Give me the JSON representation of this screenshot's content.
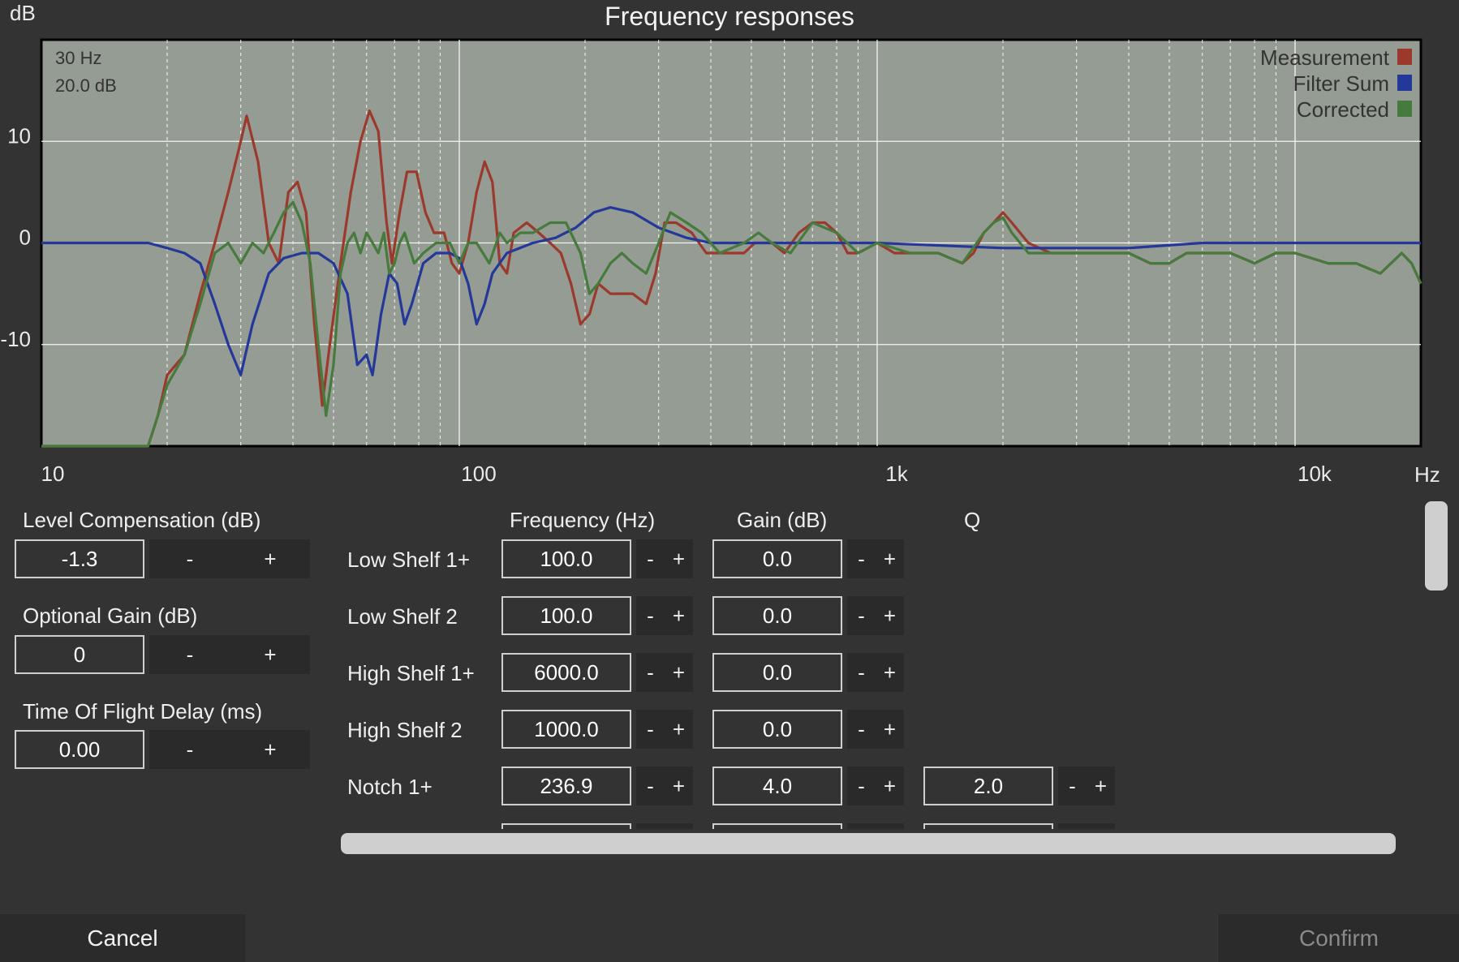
{
  "dialog": {
    "title": "Frequency responses"
  },
  "chart_data": {
    "type": "line",
    "title": "Frequency responses",
    "xlabel": "Hz",
    "ylabel": "dB",
    "x_scale": "log",
    "xlim": [
      10,
      20000
    ],
    "ylim": [
      -20,
      20
    ],
    "x_tick_labels": [
      "10",
      "100",
      "1k",
      "10k"
    ],
    "y_tick_labels": [
      "10",
      "0",
      "-10"
    ],
    "y_tick_values": [
      10,
      0,
      -10
    ],
    "x_tick_values": [
      10,
      100,
      1000,
      10000
    ],
    "grid": true,
    "legend_position": "top-right",
    "cursor_readout": {
      "freq": "30 Hz",
      "gain": "20.0 dB"
    },
    "series": [
      {
        "name": "Measurement",
        "color": "#9b3a2c",
        "points": [
          [
            10,
            -20
          ],
          [
            18,
            -20
          ],
          [
            19,
            -17
          ],
          [
            20,
            -13
          ],
          [
            22,
            -11
          ],
          [
            24,
            -5
          ],
          [
            26,
            0
          ],
          [
            28,
            5
          ],
          [
            30,
            10
          ],
          [
            31,
            12.5
          ],
          [
            33,
            8
          ],
          [
            35,
            0
          ],
          [
            37,
            -2
          ],
          [
            39,
            5
          ],
          [
            41,
            6
          ],
          [
            43,
            3
          ],
          [
            45,
            -8
          ],
          [
            47,
            -16
          ],
          [
            49,
            -10
          ],
          [
            52,
            -2
          ],
          [
            55,
            5
          ],
          [
            58,
            10
          ],
          [
            61,
            13
          ],
          [
            64,
            11
          ],
          [
            67,
            2
          ],
          [
            69,
            -2
          ],
          [
            72,
            3
          ],
          [
            75,
            7
          ],
          [
            79,
            7
          ],
          [
            83,
            3
          ],
          [
            87,
            1
          ],
          [
            92,
            1
          ],
          [
            96,
            -2
          ],
          [
            100,
            -3
          ],
          [
            105,
            0
          ],
          [
            110,
            5
          ],
          [
            115,
            8
          ],
          [
            120,
            6
          ],
          [
            125,
            -2
          ],
          [
            130,
            -3
          ],
          [
            135,
            1
          ],
          [
            145,
            2
          ],
          [
            155,
            1
          ],
          [
            165,
            0
          ],
          [
            175,
            -1
          ],
          [
            185,
            -4
          ],
          [
            195,
            -8
          ],
          [
            205,
            -7
          ],
          [
            215,
            -4
          ],
          [
            230,
            -5
          ],
          [
            245,
            -5
          ],
          [
            260,
            -5
          ],
          [
            280,
            -6
          ],
          [
            295,
            -3
          ],
          [
            310,
            2
          ],
          [
            330,
            2
          ],
          [
            360,
            1
          ],
          [
            390,
            -1
          ],
          [
            420,
            -1
          ],
          [
            450,
            -1
          ],
          [
            480,
            -1
          ],
          [
            510,
            0
          ],
          [
            560,
            0
          ],
          [
            600,
            -1
          ],
          [
            650,
            1
          ],
          [
            700,
            2
          ],
          [
            750,
            2
          ],
          [
            800,
            1
          ],
          [
            850,
            -1
          ],
          [
            900,
            -1
          ],
          [
            1000,
            0
          ],
          [
            1100,
            -1
          ],
          [
            1200,
            -1
          ],
          [
            1400,
            -1
          ],
          [
            1600,
            -2
          ],
          [
            1700,
            -1
          ],
          [
            1800,
            1
          ],
          [
            1900,
            2
          ],
          [
            2000,
            3
          ],
          [
            2100,
            2
          ],
          [
            2300,
            0
          ],
          [
            2600,
            -1
          ],
          [
            3000,
            -1
          ],
          [
            3500,
            -1
          ],
          [
            4000,
            -1
          ],
          [
            4500,
            -2
          ],
          [
            5000,
            -2
          ],
          [
            5500,
            -1
          ],
          [
            6000,
            -1
          ],
          [
            7000,
            -1
          ],
          [
            8000,
            -2
          ],
          [
            9000,
            -1
          ],
          [
            10000,
            -1
          ],
          [
            12000,
            -2
          ],
          [
            14000,
            -2
          ],
          [
            16000,
            -3
          ],
          [
            18000,
            -1
          ],
          [
            19000,
            -2
          ],
          [
            20000,
            -4
          ]
        ]
      },
      {
        "name": "Filter Sum",
        "color": "#24389a",
        "points": [
          [
            10,
            0
          ],
          [
            18,
            0
          ],
          [
            20,
            -0.5
          ],
          [
            22,
            -1
          ],
          [
            24,
            -2
          ],
          [
            26,
            -6
          ],
          [
            28,
            -10
          ],
          [
            30,
            -13
          ],
          [
            32,
            -8
          ],
          [
            35,
            -3
          ],
          [
            38,
            -1.5
          ],
          [
            42,
            -1
          ],
          [
            46,
            -1
          ],
          [
            50,
            -2
          ],
          [
            54,
            -5
          ],
          [
            57,
            -12
          ],
          [
            60,
            -11
          ],
          [
            62,
            -13
          ],
          [
            65,
            -7
          ],
          [
            68,
            -3
          ],
          [
            71,
            -4
          ],
          [
            74,
            -8
          ],
          [
            77,
            -6
          ],
          [
            82,
            -2
          ],
          [
            88,
            -1
          ],
          [
            95,
            -1
          ],
          [
            100,
            -1.5
          ],
          [
            105,
            -4
          ],
          [
            110,
            -8
          ],
          [
            115,
            -6
          ],
          [
            120,
            -3
          ],
          [
            130,
            -1
          ],
          [
            150,
            0
          ],
          [
            170,
            0.5
          ],
          [
            190,
            1.5
          ],
          [
            210,
            3
          ],
          [
            230,
            3.5
          ],
          [
            260,
            3
          ],
          [
            300,
            1.5
          ],
          [
            350,
            0.5
          ],
          [
            400,
            0
          ],
          [
            600,
            0
          ],
          [
            1000,
            0
          ],
          [
            2000,
            -0.5
          ],
          [
            4000,
            -0.5
          ],
          [
            6000,
            0
          ],
          [
            10000,
            0
          ],
          [
            20000,
            0
          ]
        ]
      },
      {
        "name": "Corrected",
        "color": "#477a3d",
        "points": [
          [
            10,
            -20
          ],
          [
            18,
            -20
          ],
          [
            19,
            -17
          ],
          [
            20,
            -14
          ],
          [
            22,
            -11
          ],
          [
            24,
            -6
          ],
          [
            26,
            -1
          ],
          [
            28,
            0
          ],
          [
            30,
            -2
          ],
          [
            32,
            0
          ],
          [
            34,
            -1
          ],
          [
            36,
            1
          ],
          [
            38,
            3
          ],
          [
            40,
            4
          ],
          [
            42,
            2
          ],
          [
            44,
            -2
          ],
          [
            46,
            -10
          ],
          [
            48,
            -17
          ],
          [
            50,
            -12
          ],
          [
            52,
            -3
          ],
          [
            54,
            0
          ],
          [
            56,
            1
          ],
          [
            58,
            -1
          ],
          [
            60,
            1
          ],
          [
            62,
            0
          ],
          [
            64,
            -1
          ],
          [
            66,
            1
          ],
          [
            68,
            -3
          ],
          [
            70,
            -2
          ],
          [
            72,
            0
          ],
          [
            74,
            1
          ],
          [
            78,
            -2
          ],
          [
            82,
            -1
          ],
          [
            88,
            0
          ],
          [
            95,
            0
          ],
          [
            100,
            -2
          ],
          [
            105,
            0
          ],
          [
            110,
            0
          ],
          [
            118,
            -2
          ],
          [
            125,
            1
          ],
          [
            130,
            0
          ],
          [
            140,
            1
          ],
          [
            150,
            1
          ],
          [
            165,
            2
          ],
          [
            180,
            2
          ],
          [
            195,
            -1
          ],
          [
            205,
            -5
          ],
          [
            215,
            -4
          ],
          [
            230,
            -2
          ],
          [
            245,
            -1
          ],
          [
            260,
            -2
          ],
          [
            280,
            -3
          ],
          [
            300,
            0
          ],
          [
            320,
            3
          ],
          [
            350,
            2
          ],
          [
            380,
            1
          ],
          [
            420,
            -1
          ],
          [
            480,
            0
          ],
          [
            520,
            1
          ],
          [
            560,
            0
          ],
          [
            620,
            -1
          ],
          [
            700,
            2
          ],
          [
            800,
            1
          ],
          [
            900,
            -1
          ],
          [
            1000,
            0
          ],
          [
            1200,
            -1
          ],
          [
            1400,
            -1
          ],
          [
            1600,
            -2
          ],
          [
            1800,
            1
          ],
          [
            1900,
            2
          ],
          [
            2000,
            2.5
          ],
          [
            2100,
            1
          ],
          [
            2300,
            -1
          ],
          [
            2600,
            -1
          ],
          [
            3000,
            -1
          ],
          [
            3500,
            -1
          ],
          [
            4000,
            -1
          ],
          [
            4500,
            -2
          ],
          [
            5000,
            -2
          ],
          [
            5500,
            -1
          ],
          [
            6000,
            -1
          ],
          [
            7000,
            -1
          ],
          [
            8000,
            -2
          ],
          [
            9000,
            -1
          ],
          [
            10000,
            -1
          ],
          [
            12000,
            -2
          ],
          [
            14000,
            -2
          ],
          [
            16000,
            -3
          ],
          [
            18000,
            -1
          ],
          [
            19000,
            -2
          ],
          [
            20000,
            -4
          ]
        ]
      }
    ]
  },
  "left_panel": {
    "level_comp": {
      "label": "Level Compensation (dB)",
      "value": "-1.3",
      "minus": "-",
      "plus": "+"
    },
    "optional_gain": {
      "label": "Optional Gain (dB)",
      "value": "0",
      "minus": "-",
      "plus": "+"
    },
    "tof_delay": {
      "label": "Time Of Flight Delay (ms)",
      "value": "0.00",
      "minus": "-",
      "plus": "+"
    }
  },
  "filter_table": {
    "headers": {
      "frequency": "Frequency (Hz)",
      "gain": "Gain (dB)",
      "q": "Q"
    },
    "rows": [
      {
        "name": "Low Shelf 1+",
        "frequency": "100.0",
        "gain": "0.0",
        "q": ""
      },
      {
        "name": "Low Shelf 2",
        "frequency": "100.0",
        "gain": "0.0",
        "q": ""
      },
      {
        "name": "High Shelf 1+",
        "frequency": "6000.0",
        "gain": "0.0",
        "q": ""
      },
      {
        "name": "High Shelf 2",
        "frequency": "1000.0",
        "gain": "0.0",
        "q": ""
      },
      {
        "name": "Notch 1+",
        "frequency": "236.9",
        "gain": "4.0",
        "q": "2.0"
      }
    ],
    "minus": "-",
    "plus": "+"
  },
  "footer": {
    "cancel": "Cancel",
    "confirm": "Confirm"
  }
}
